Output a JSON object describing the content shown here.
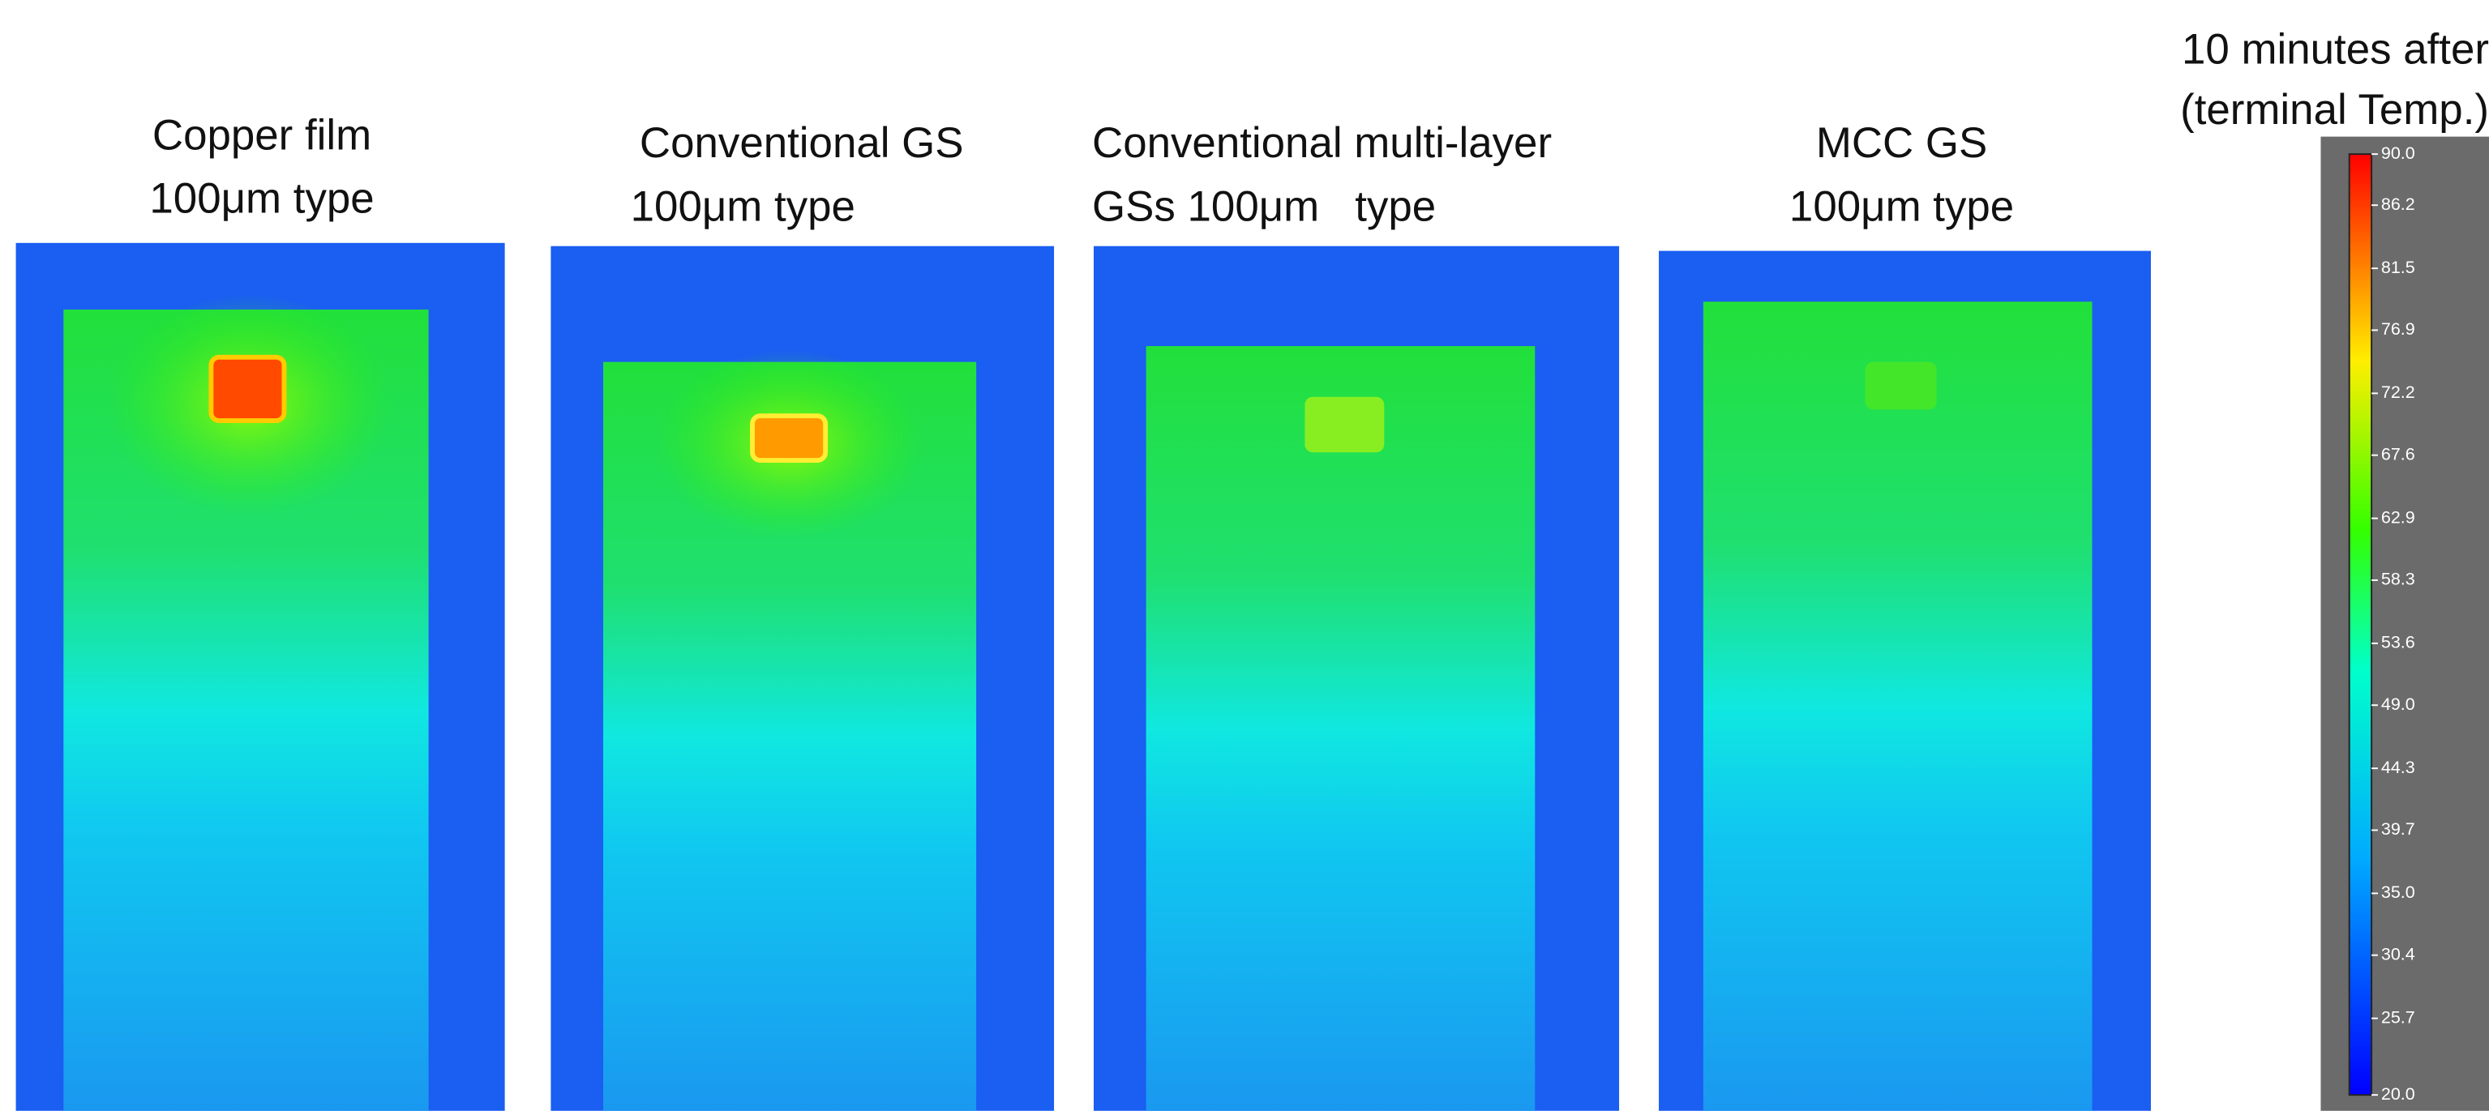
{
  "panels": [
    {
      "label": [
        "Copper film",
        "100μm type"
      ]
    },
    {
      "label": [
        "Conventional GS",
        "100μm type"
      ]
    },
    {
      "label": [
        "Conventional multi-layer",
        "GSs 100μm   type"
      ]
    },
    {
      "label": [
        "MCC GS",
        "100μm type"
      ]
    }
  ],
  "colorbar": {
    "title": [
      "10 minutes after",
      "(terminal Temp.)"
    ],
    "ticks": [
      {
        "value": 90,
        "label": "90.0"
      },
      {
        "value": 86.2,
        "label": "86.2"
      },
      {
        "value": 81.5,
        "label": "81.5"
      },
      {
        "value": 76.9,
        "label": "76.9"
      },
      {
        "value": 72.2,
        "label": "72.2"
      },
      {
        "value": 67.6,
        "label": "67.6"
      },
      {
        "value": 62.9,
        "label": "62.9"
      },
      {
        "value": 58.3,
        "label": "58.3"
      },
      {
        "value": 53.6,
        "label": "53.6"
      },
      {
        "value": 49,
        "label": "49.0"
      },
      {
        "value": 44.3,
        "label": "44.3"
      },
      {
        "value": 39.7,
        "label": "39.7"
      },
      {
        "value": 35,
        "label": "35.0"
      },
      {
        "value": 30.4,
        "label": "30.4"
      },
      {
        "value": 25.7,
        "label": "25.7"
      },
      {
        "value": 20,
        "label": "20.0"
      }
    ]
  }
}
